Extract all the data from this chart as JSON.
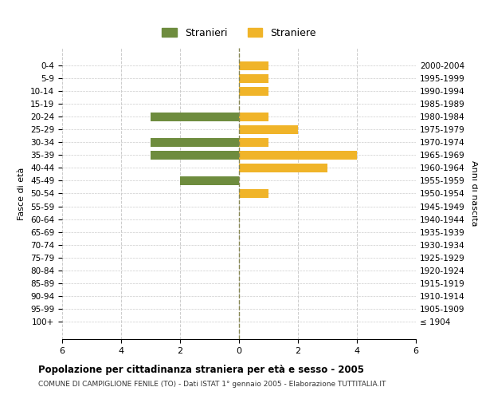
{
  "age_groups": [
    "100+",
    "95-99",
    "90-94",
    "85-89",
    "80-84",
    "75-79",
    "70-74",
    "65-69",
    "60-64",
    "55-59",
    "50-54",
    "45-49",
    "40-44",
    "35-39",
    "30-34",
    "25-29",
    "20-24",
    "15-19",
    "10-14",
    "5-9",
    "0-4"
  ],
  "birth_years": [
    "≤ 1904",
    "1905-1909",
    "1910-1914",
    "1915-1919",
    "1920-1924",
    "1925-1929",
    "1930-1934",
    "1935-1939",
    "1940-1944",
    "1945-1949",
    "1950-1954",
    "1955-1959",
    "1960-1964",
    "1965-1969",
    "1970-1974",
    "1975-1979",
    "1980-1984",
    "1985-1989",
    "1990-1994",
    "1995-1999",
    "2000-2004"
  ],
  "males": [
    0,
    0,
    0,
    0,
    0,
    0,
    0,
    0,
    0,
    0,
    0,
    2,
    0,
    3,
    3,
    0,
    3,
    0,
    0,
    0,
    0
  ],
  "females": [
    0,
    0,
    0,
    0,
    0,
    0,
    0,
    0,
    0,
    0,
    1,
    0,
    3,
    4,
    1,
    2,
    1,
    0,
    1,
    1,
    1
  ],
  "male_color": "#6e8c3e",
  "female_color": "#f0b429",
  "background_color": "#ffffff",
  "grid_color": "#cccccc",
  "xlim": 6,
  "title": "Popolazione per cittadinanza straniera per età e sesso - 2005",
  "subtitle": "COMUNE DI CAMPIGLIONE FENILE (TO) - Dati ISTAT 1° gennaio 2005 - Elaborazione TUTTITALIA.IT",
  "ylabel_left": "Fasce di età",
  "ylabel_right": "Anni di nascita",
  "legend_male": "Stranieri",
  "legend_female": "Straniere"
}
